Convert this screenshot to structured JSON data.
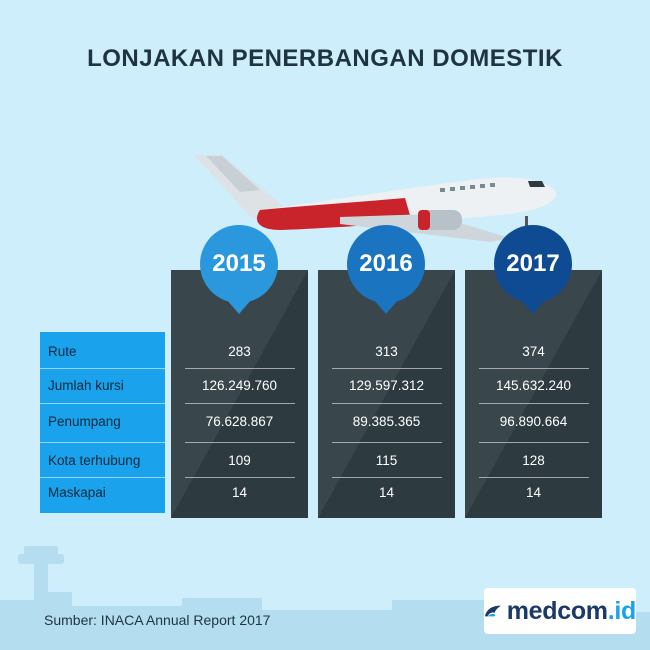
{
  "title": "LONJAKAN PENERBANGAN DOMESTIK",
  "years": [
    "2015",
    "2016",
    "2017"
  ],
  "rows": [
    {
      "label": "Rute",
      "values": [
        "283",
        "313",
        "374"
      ]
    },
    {
      "label": "Jumlah kursi",
      "values": [
        "126.249.760",
        "129.597.312",
        "145.632.240"
      ]
    },
    {
      "label": "Penumpang",
      "values": [
        "76.628.867",
        "89.385.365",
        "96.890.664"
      ]
    },
    {
      "label": "Kota terhubung",
      "values": [
        "109",
        "115",
        "128"
      ]
    },
    {
      "label": "Maskapai",
      "values": [
        "14",
        "14",
        "14"
      ]
    }
  ],
  "source": "Sumber: INACA Annual Report 2017",
  "logo": {
    "main": "medcom",
    "suffix": ".id"
  },
  "colors": {
    "background": "#cdeefa",
    "label_panel": "#1aa3ec",
    "column": "#2d3a40",
    "year_2015": "#2b97dc",
    "year_2016": "#1a74c0",
    "year_2017": "#0f4b92",
    "plane_tail": "#c9232b"
  }
}
